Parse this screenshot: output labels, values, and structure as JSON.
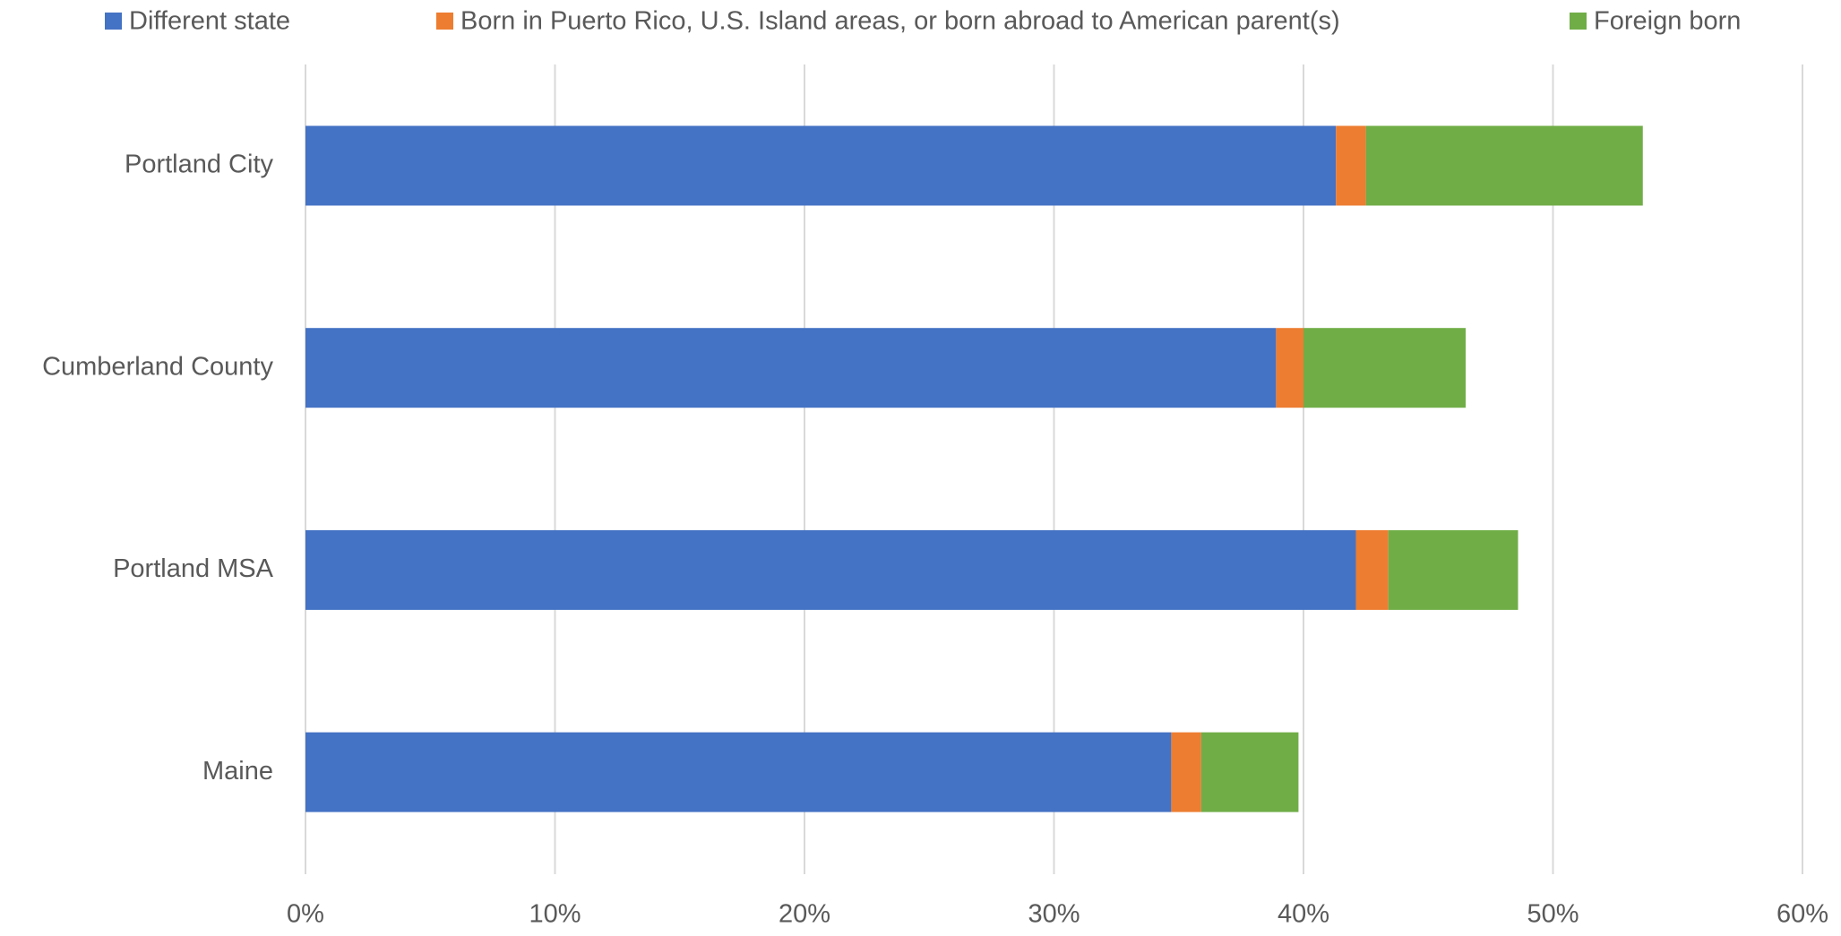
{
  "chart_data": {
    "type": "stacked_barh",
    "categories": [
      "Portland City",
      "Cumberland County",
      "Portland MSA",
      "Maine"
    ],
    "series": [
      {
        "name": "Different state",
        "color": "#4472c4",
        "values": [
          41.3,
          38.9,
          42.1,
          34.7
        ]
      },
      {
        "name": "Born in Puerto Rico, U.S. Island areas, or born abroad to American parent(s)",
        "color": "#ed7d31",
        "values": [
          1.2,
          1.1,
          1.3,
          1.2
        ]
      },
      {
        "name": "Foreign born",
        "color": "#70ad47",
        "values": [
          11.1,
          6.5,
          5.2,
          3.9
        ]
      }
    ],
    "xlim": [
      0,
      60
    ],
    "xticks": [
      {
        "value": 0,
        "label": "0%"
      },
      {
        "value": 10,
        "label": "10%"
      },
      {
        "value": 20,
        "label": "20%"
      },
      {
        "value": 30,
        "label": "30%"
      },
      {
        "value": 40,
        "label": "40%"
      },
      {
        "value": 50,
        "label": "50%"
      },
      {
        "value": 60,
        "label": "60%"
      }
    ],
    "grid": true,
    "legend": "top"
  }
}
